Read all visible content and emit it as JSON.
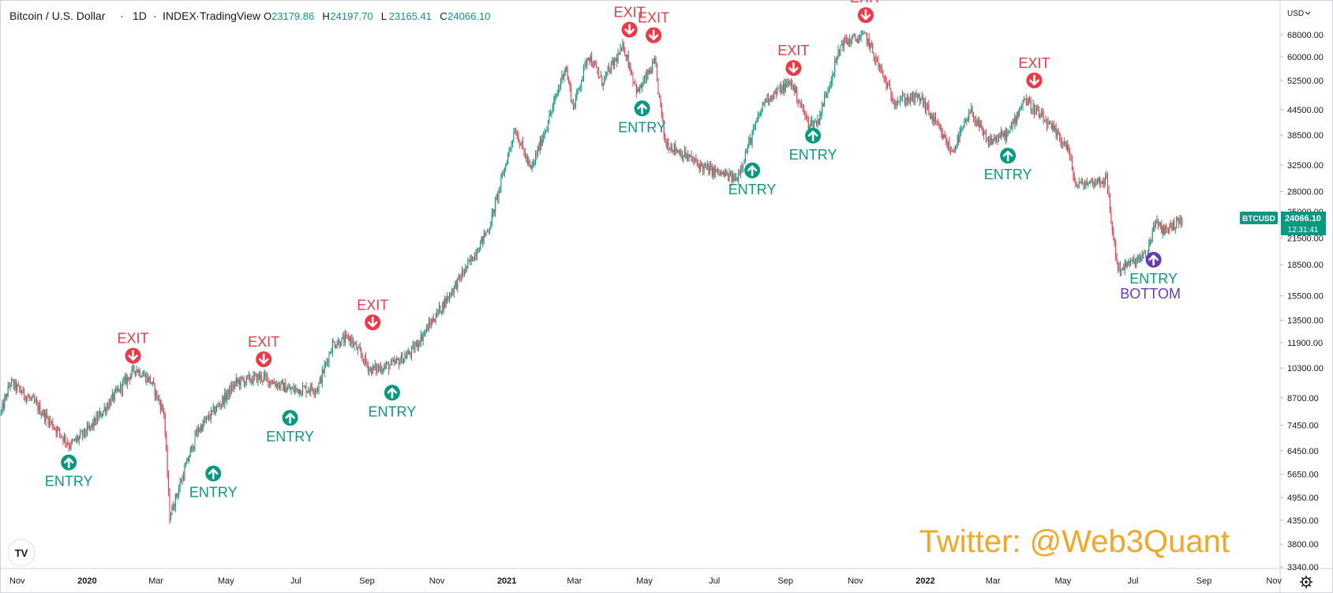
{
  "header": {
    "symbol": "Bitcoin / U.S. Dollar",
    "interval": "1D",
    "exchange": "INDEX",
    "platform": "TradingView",
    "ohlc": [
      {
        "k": "O",
        "v": "23179.86"
      },
      {
        "k": "H",
        "v": "24197.70"
      },
      {
        "k": "L",
        "v": "23165.41"
      },
      {
        "k": "C",
        "v": "24066.10"
      }
    ]
  },
  "currency": "USD",
  "price_badge": {
    "symbol": "BTCUSD",
    "price": "24066.10",
    "countdown": "12:31:41"
  },
  "watermark": "Twitter: @Web3Quant",
  "colors": {
    "up": "#089981",
    "down": "#f23645",
    "bottom": "#673ab7",
    "watermark": "#f5a623",
    "badge": "#089981"
  },
  "chart_data": {
    "type": "candlestick",
    "title": "Bitcoin / U.S. Dollar",
    "y_scale": "log",
    "ylim": [
      3340,
      80000
    ],
    "y_ticks": [
      68000,
      60000,
      52500,
      44500,
      38500,
      32500,
      28000,
      25000,
      21500,
      18500,
      15500,
      13500,
      11900,
      10300,
      8700,
      7450,
      6450,
      5650,
      4950,
      4350,
      3800,
      3340
    ],
    "x_range": [
      "2019-10-17",
      "2022-11-05"
    ],
    "x_ticks": [
      {
        "label": "Nov",
        "date": "2019-11-01",
        "bold": false
      },
      {
        "label": "2020",
        "date": "2020-01-01",
        "bold": true
      },
      {
        "label": "Mar",
        "date": "2020-03-01",
        "bold": false
      },
      {
        "label": "May",
        "date": "2020-05-01",
        "bold": false
      },
      {
        "label": "Jul",
        "date": "2020-07-01",
        "bold": false
      },
      {
        "label": "Sep",
        "date": "2020-09-01",
        "bold": false
      },
      {
        "label": "Nov",
        "date": "2020-11-01",
        "bold": false
      },
      {
        "label": "2021",
        "date": "2021-01-01",
        "bold": true
      },
      {
        "label": "Mar",
        "date": "2021-03-01",
        "bold": false
      },
      {
        "label": "May",
        "date": "2021-05-01",
        "bold": false
      },
      {
        "label": "Jul",
        "date": "2021-07-01",
        "bold": false
      },
      {
        "label": "Sep",
        "date": "2021-09-01",
        "bold": false
      },
      {
        "label": "Nov",
        "date": "2021-11-01",
        "bold": false
      },
      {
        "label": "2022",
        "date": "2022-01-01",
        "bold": true
      },
      {
        "label": "Mar",
        "date": "2022-03-01",
        "bold": false
      },
      {
        "label": "May",
        "date": "2022-05-01",
        "bold": false
      },
      {
        "label": "Jul",
        "date": "2022-07-01",
        "bold": false
      },
      {
        "label": "Sep",
        "date": "2022-09-01",
        "bold": false
      },
      {
        "label": "Nov",
        "date": "2022-11-01",
        "bold": false
      }
    ],
    "price_path": [
      [
        "2019-10-18",
        8000
      ],
      [
        "2019-10-26",
        9500
      ],
      [
        "2019-11-15",
        8500
      ],
      [
        "2019-12-05",
        7300
      ],
      [
        "2019-12-17",
        6650
      ],
      [
        "2020-01-03",
        7300
      ],
      [
        "2020-02-12",
        10300
      ],
      [
        "2020-02-25",
        9600
      ],
      [
        "2020-03-08",
        8000
      ],
      [
        "2020-03-12",
        5000
      ],
      [
        "2020-03-13",
        4450
      ],
      [
        "2020-04-06",
        7200
      ],
      [
        "2020-04-30",
        8700
      ],
      [
        "2020-05-10",
        9500
      ],
      [
        "2020-06-01",
        9800
      ],
      [
        "2020-06-26",
        9100
      ],
      [
        "2020-07-20",
        9200
      ],
      [
        "2020-08-02",
        11800
      ],
      [
        "2020-08-17",
        12200
      ],
      [
        "2020-09-04",
        10200
      ],
      [
        "2020-09-24",
        10500
      ],
      [
        "2020-10-10",
        11300
      ],
      [
        "2020-11-10",
        15300
      ],
      [
        "2020-12-01",
        19000
      ],
      [
        "2020-12-17",
        23000
      ],
      [
        "2021-01-08",
        40000
      ],
      [
        "2021-01-22",
        31500
      ],
      [
        "2021-02-10",
        45000
      ],
      [
        "2021-02-21",
        57000
      ],
      [
        "2021-02-28",
        45000
      ],
      [
        "2021-03-13",
        61000
      ],
      [
        "2021-03-25",
        52000
      ],
      [
        "2021-04-13",
        63500
      ],
      [
        "2021-04-25",
        49000
      ],
      [
        "2021-05-10",
        58000
      ],
      [
        "2021-05-19",
        37000
      ],
      [
        "2021-06-22",
        32000
      ],
      [
        "2021-07-20",
        30000
      ],
      [
        "2021-08-14",
        47000
      ],
      [
        "2021-09-06",
        52000
      ],
      [
        "2021-09-21",
        41000
      ],
      [
        "2021-09-29",
        41500
      ],
      [
        "2021-10-20",
        65000
      ],
      [
        "2021-11-10",
        67500
      ],
      [
        "2021-12-04",
        47000
      ],
      [
        "2021-12-28",
        47500
      ],
      [
        "2022-01-24",
        35000
      ],
      [
        "2022-02-10",
        44000
      ],
      [
        "2022-02-24",
        37000
      ],
      [
        "2022-03-15",
        39000
      ],
      [
        "2022-03-28",
        47500
      ],
      [
        "2022-04-26",
        38500
      ],
      [
        "2022-05-05",
        36000
      ],
      [
        "2022-05-12",
        29000
      ],
      [
        "2022-06-08",
        30000
      ],
      [
        "2022-06-13",
        22500
      ],
      [
        "2022-06-18",
        18000
      ],
      [
        "2022-07-13",
        19500
      ],
      [
        "2022-07-20",
        23500
      ],
      [
        "2022-07-27",
        22500
      ],
      [
        "2022-08-03",
        22900
      ],
      [
        "2022-08-13",
        24066
      ]
    ],
    "last_price": 24066.1,
    "signals": [
      {
        "type": "entry",
        "label": "ENTRY",
        "date": "2019-12-16",
        "price": 6600
      },
      {
        "type": "exit",
        "label": "EXIT",
        "date": "2020-02-10",
        "price": 10100
      },
      {
        "type": "entry",
        "label": "ENTRY",
        "date": "2020-04-20",
        "price": 6200
      },
      {
        "type": "exit",
        "label": "EXIT",
        "date": "2020-06-03",
        "price": 9900
      },
      {
        "type": "entry",
        "label": "ENTRY",
        "date": "2020-06-26",
        "price": 8500
      },
      {
        "type": "exit",
        "label": "EXIT",
        "date": "2020-09-06",
        "price": 12200
      },
      {
        "type": "entry",
        "label": "ENTRY",
        "date": "2020-09-23",
        "price": 9800
      },
      {
        "type": "exit",
        "label": "EXIT",
        "date": "2021-04-18",
        "price": 64000
      },
      {
        "type": "entry",
        "label": "ENTRY",
        "date": "2021-04-29",
        "price": 49000
      },
      {
        "type": "exit",
        "label": "EXIT",
        "date": "2021-05-09",
        "price": 62000
      },
      {
        "type": "entry",
        "label": "ENTRY",
        "date": "2021-08-03",
        "price": 34500
      },
      {
        "type": "exit",
        "label": "EXIT",
        "date": "2021-09-08",
        "price": 51500
      },
      {
        "type": "entry",
        "label": "ENTRY",
        "date": "2021-09-25",
        "price": 42000
      },
      {
        "type": "exit",
        "label": "EXIT",
        "date": "2021-11-10",
        "price": 69500
      },
      {
        "type": "entry",
        "label": "ENTRY",
        "date": "2022-03-14",
        "price": 37500
      },
      {
        "type": "exit",
        "label": "EXIT",
        "date": "2022-04-06",
        "price": 48000
      },
      {
        "type": "bottom",
        "label": "ENTRY",
        "label2": "BOTTOM",
        "date": "2022-07-19",
        "price": 20800
      }
    ]
  }
}
